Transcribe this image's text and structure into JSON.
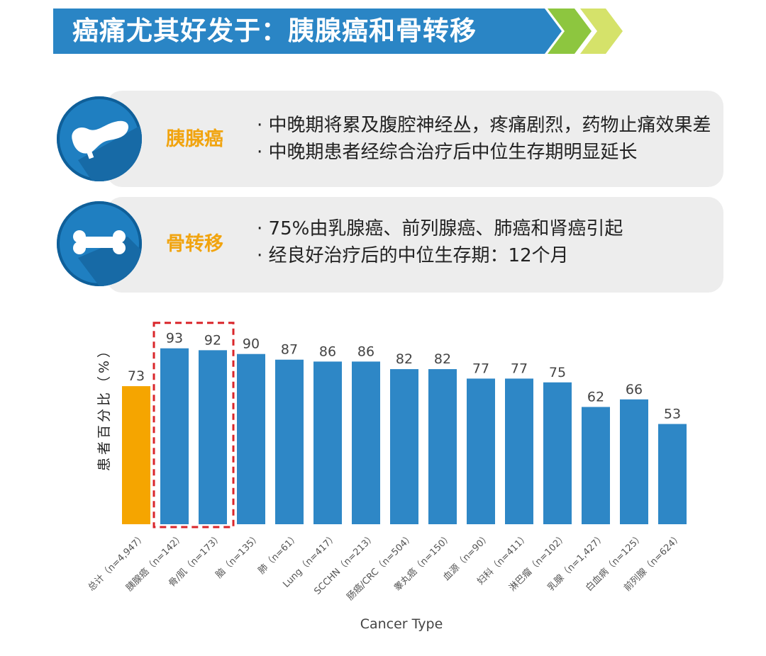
{
  "header": {
    "title": "癌痛尤其好发于：胰腺癌和骨转移"
  },
  "cards": [
    {
      "icon": "pancreas-icon",
      "label": "胰腺癌",
      "bullets": [
        "· 中晚期将累及腹腔神经丛，疼痛剧烈，药物止痛效果差",
        "· 中晚期患者经综合治疗后中位生存期明显延长"
      ]
    },
    {
      "icon": "bone-icon",
      "label": "骨转移",
      "bullets": [
        "·  75%由乳腺癌、前列腺癌、肺癌和肾癌引起",
        "·  经良好治疗后的中位生存期：12个月"
      ]
    }
  ],
  "colors": {
    "banner": "#2a85c5",
    "accent": "#f1a40f",
    "bar": "#2e87c6",
    "highlight": "#f5a500",
    "dashed_box": "#d9252a"
  },
  "chart_data": {
    "type": "bar",
    "xlabel": "Cancer Type",
    "ylabel": "患者百分比（%）",
    "categories": [
      "总计（n=4,947）",
      "胰腺癌（n=142）",
      "骨/肌（n=173）",
      "脑（n=135）",
      "肺（n=61）",
      "Lung（n=417）",
      "SCCHN（n=213）",
      "肠癌/CRC（n=504）",
      "睾丸癌（n=150）",
      "血源（n=90）",
      "妇科（n=411）",
      "淋巴瘤（n=102）",
      "乳腺（n=1,427）",
      "白血病（n=125）",
      "前列腺（n=624）"
    ],
    "values": [
      73,
      93,
      92,
      90,
      87,
      86,
      86,
      82,
      82,
      77,
      77,
      75,
      62,
      66,
      53
    ],
    "highlight_index": 0,
    "boxed_indices": [
      1,
      2
    ],
    "ylim": [
      0,
      100
    ]
  }
}
